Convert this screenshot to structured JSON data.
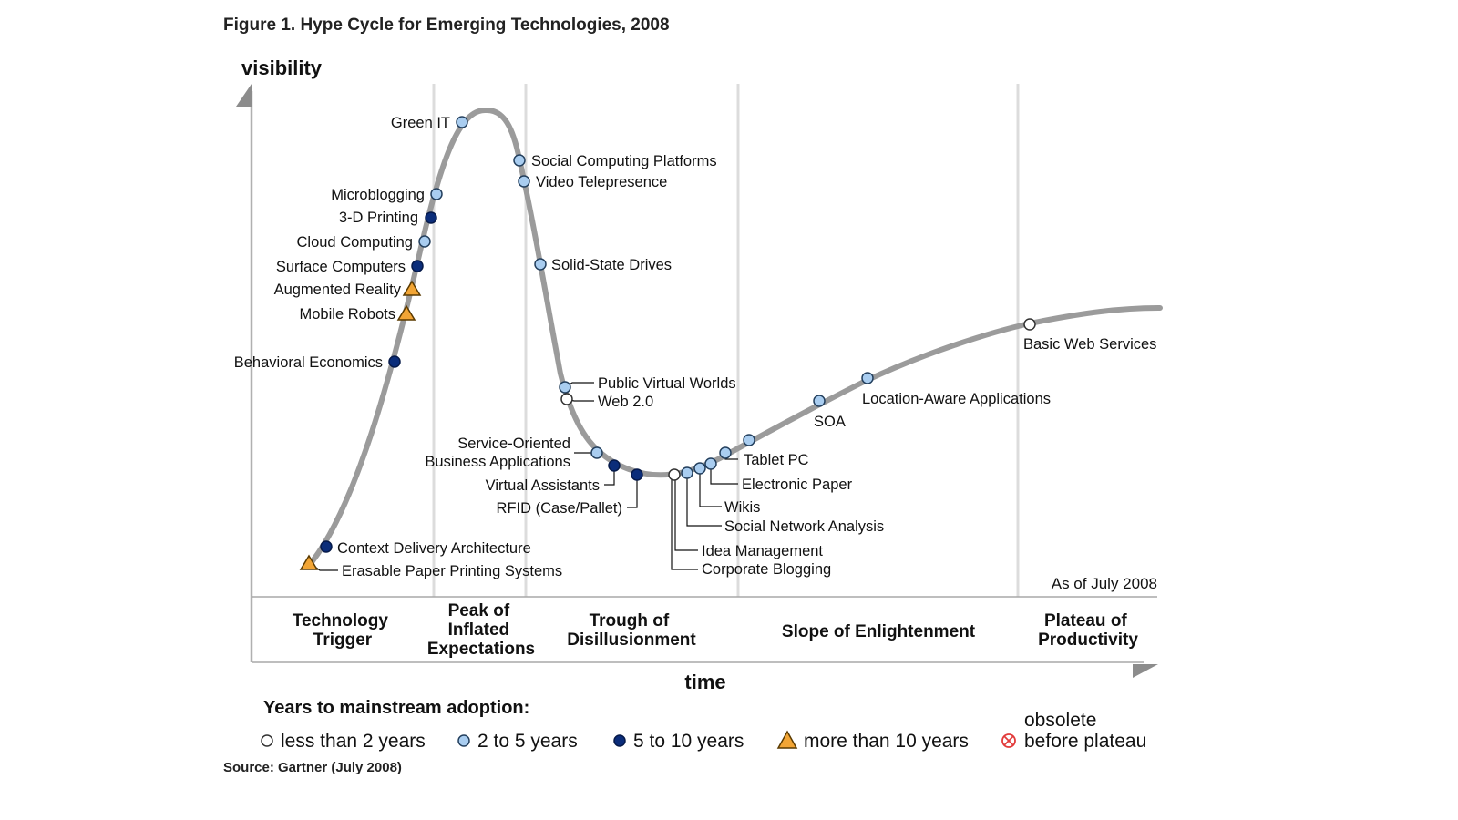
{
  "title": "Figure 1. Hype Cycle for Emerging Technologies, 2008",
  "y_axis_label": "visibility",
  "x_axis_label": "time",
  "as_of": "As of July 2008",
  "source": "Source: Gartner (July 2008)",
  "phases": [
    {
      "id": "trigger",
      "lines": [
        "Technology",
        "Trigger"
      ]
    },
    {
      "id": "peak",
      "lines": [
        "Peak of",
        "Inflated",
        "Expectations"
      ]
    },
    {
      "id": "trough",
      "lines": [
        "Trough of",
        "Disillusionment"
      ]
    },
    {
      "id": "slope",
      "lines": [
        "Slope of Enlightenment"
      ]
    },
    {
      "id": "plateau",
      "lines": [
        "Plateau of",
        "Productivity"
      ]
    }
  ],
  "legend": {
    "title": "Years to mainstream adoption:",
    "items": [
      {
        "key": "lt2",
        "lines": [
          "less than 2 years"
        ]
      },
      {
        "key": "2to5",
        "lines": [
          "2 to 5 years"
        ]
      },
      {
        "key": "5to10",
        "lines": [
          "5 to 10 years"
        ]
      },
      {
        "key": "gt10",
        "lines": [
          "more than 10 years"
        ]
      },
      {
        "key": "obsolete",
        "lines": [
          "obsolete",
          "before plateau"
        ]
      }
    ]
  },
  "category_colors": {
    "lt2": "#ffffff",
    "2to5": "#a9cdf0",
    "5to10": "#0b2d7a",
    "gt10": "#f2a535",
    "obsolete": "#e23b3b"
  },
  "curve_color": "#9b9b9b",
  "technologies": [
    {
      "name": "Green IT",
      "category": "2to5"
    },
    {
      "name": "Social Computing Platforms",
      "category": "2to5"
    },
    {
      "name": "Video Telepresence",
      "category": "2to5"
    },
    {
      "name": "Microblogging",
      "category": "2to5"
    },
    {
      "name": "3-D Printing",
      "category": "5to10"
    },
    {
      "name": "Cloud Computing",
      "category": "2to5"
    },
    {
      "name": "Surface Computers",
      "category": "5to10"
    },
    {
      "name": "Augmented Reality",
      "category": "gt10"
    },
    {
      "name": "Mobile Robots",
      "category": "gt10"
    },
    {
      "name": "Solid-State Drives",
      "category": "2to5"
    },
    {
      "name": "Behavioral Economics",
      "category": "5to10"
    },
    {
      "name": "Public Virtual Worlds",
      "category": "2to5"
    },
    {
      "name": "Web 2.0",
      "category": "lt2"
    },
    {
      "name": "Basic Web Services",
      "category": "lt2"
    },
    {
      "name": "Location-Aware Applications",
      "category": "2to5"
    },
    {
      "name": "SOA",
      "category": "2to5"
    },
    {
      "name": "Service-Oriented Business Applications",
      "category": "2to5",
      "label_lines": [
        "Service-Oriented",
        "Business Applications"
      ]
    },
    {
      "name": "Tablet PC",
      "category": "2to5"
    },
    {
      "name": "Electronic Paper",
      "category": "2to5"
    },
    {
      "name": "Virtual Assistants",
      "category": "5to10"
    },
    {
      "name": "RFID (Case/Pallet)",
      "category": "5to10"
    },
    {
      "name": "Wikis",
      "category": "2to5"
    },
    {
      "name": "Social Network Analysis",
      "category": "2to5"
    },
    {
      "name": "Idea Management",
      "category": "2to5"
    },
    {
      "name": "Corporate Blogging",
      "category": "lt2"
    },
    {
      "name": "Context Delivery Architecture",
      "category": "5to10"
    },
    {
      "name": "Erasable Paper Printing Systems",
      "category": "gt10"
    }
  ]
}
